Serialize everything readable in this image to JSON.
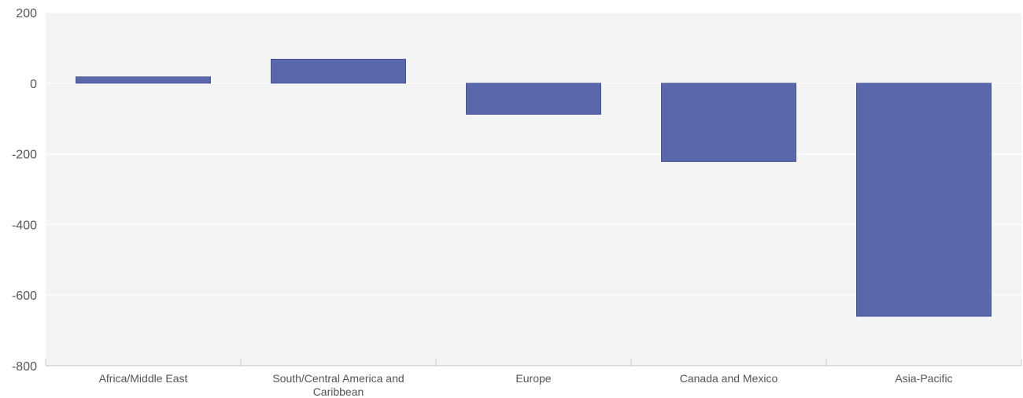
{
  "chart_data": {
    "type": "bar",
    "categories": [
      "Africa/Middle East",
      "South/Central America and Caribbean",
      "Europe",
      "Canada and Mexico",
      "Asia-Pacific"
    ],
    "category_label_lines": [
      [
        "Africa/Middle East"
      ],
      [
        "South/Central America and",
        "Caribbean"
      ],
      [
        "Europe"
      ],
      [
        "Canada and Mexico"
      ],
      [
        "Asia-Pacific"
      ]
    ],
    "values": [
      18,
      68,
      -88,
      -222,
      -660
    ],
    "ylim": [
      -800,
      200
    ],
    "yticks": [
      200,
      0,
      -200,
      -400,
      -600,
      -800
    ],
    "ytick_labels": [
      "200",
      "0",
      "-200",
      "-400",
      "-600",
      "-800"
    ],
    "title": "",
    "xlabel": "",
    "ylabel": "",
    "grid": true,
    "colors": {
      "bar": "#5b67ab",
      "bar_stroke": "#3f4a8f",
      "plot_bg": "#f4f4f4",
      "gridline": "#ffffff",
      "axis": "#c8c8c8",
      "text": "#555555"
    }
  }
}
